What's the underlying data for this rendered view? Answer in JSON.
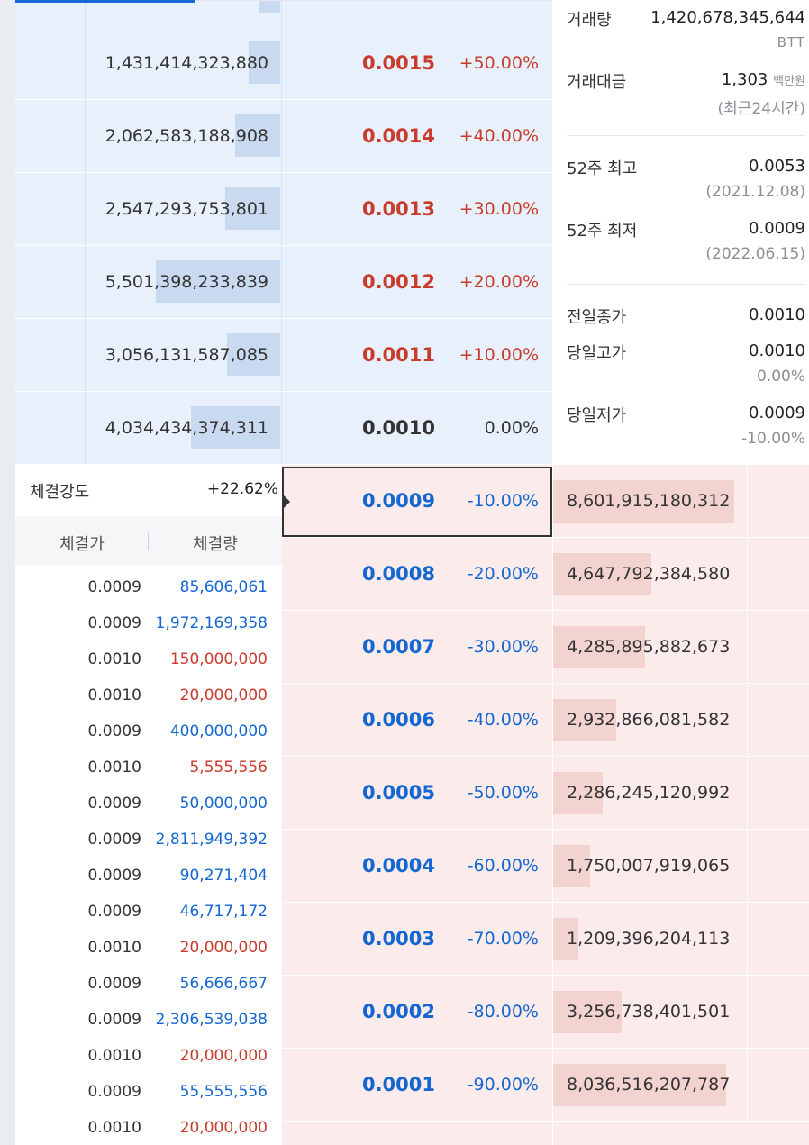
{
  "colors": {
    "up": "#c93b2c",
    "down": "#1466d0",
    "flat": "#333333",
    "ask_bg": "#e8f0fb",
    "bid_bg": "#fbeceb"
  },
  "ask_rows": [
    {
      "volume": "1,431,414,323,880",
      "price": "0.0015",
      "change": "+50.00%",
      "tone": "red",
      "bar_fraction": 0.16
    },
    {
      "volume": "2,062,583,188,908",
      "price": "0.0014",
      "change": "+40.00%",
      "tone": "red",
      "bar_fraction": 0.23
    },
    {
      "volume": "2,547,293,753,801",
      "price": "0.0013",
      "change": "+30.00%",
      "tone": "red",
      "bar_fraction": 0.28
    },
    {
      "volume": "5,501,398,233,839",
      "price": "0.0012",
      "change": "+20.00%",
      "tone": "red",
      "bar_fraction": 0.63
    },
    {
      "volume": "3,056,131,587,085",
      "price": "0.0011",
      "change": "+10.00%",
      "tone": "red",
      "bar_fraction": 0.27
    },
    {
      "volume": "4,034,434,374,311",
      "price": "0.0010",
      "change": "0.00%",
      "tone": "dark",
      "bar_fraction": 0.45
    }
  ],
  "bid_rows": [
    {
      "price": "0.0009",
      "change": "-10.00%",
      "volume": "8,601,915,180,312",
      "bar_fraction": 0.92
    },
    {
      "price": "0.0008",
      "change": "-20.00%",
      "volume": "4,647,792,384,580",
      "bar_fraction": 0.5
    },
    {
      "price": "0.0007",
      "change": "-30.00%",
      "volume": "4,285,895,882,673",
      "bar_fraction": 0.47
    },
    {
      "price": "0.0006",
      "change": "-40.00%",
      "volume": "2,932,866,081,582",
      "bar_fraction": 0.32
    },
    {
      "price": "0.0005",
      "change": "-50.00%",
      "volume": "2,286,245,120,992",
      "bar_fraction": 0.25
    },
    {
      "price": "0.0004",
      "change": "-60.00%",
      "volume": "1,750,007,919,065",
      "bar_fraction": 0.19
    },
    {
      "price": "0.0003",
      "change": "-70.00%",
      "volume": "1,209,396,204,113",
      "bar_fraction": 0.13
    },
    {
      "price": "0.0002",
      "change": "-80.00%",
      "volume": "3,256,738,401,501",
      "bar_fraction": 0.35
    },
    {
      "price": "0.0001",
      "change": "-90.00%",
      "volume": "8,036,516,207,787",
      "bar_fraction": 0.88
    }
  ],
  "info": {
    "volume_label": "거래량",
    "volume_value": "1,420,678,345,644",
    "volume_unit": "BTT",
    "amount_label": "거래대금",
    "amount_value": "1,303",
    "amount_unit": "백만원",
    "amount_period": "(최근24시간)",
    "high52_label": "52주 최고",
    "high52_value": "0.0053",
    "high52_date": "(2021.12.08)",
    "low52_label": "52주 최저",
    "low52_value": "0.0009",
    "low52_date": "(2022.06.15)",
    "prev_close_label": "전일종가",
    "prev_close_value": "0.0010",
    "today_high_label": "당일고가",
    "today_high_value": "0.0010",
    "today_high_pct": "0.00%",
    "today_low_label": "당일저가",
    "today_low_value": "0.0009",
    "today_low_pct": "-10.00%"
  },
  "trades": {
    "strength_label": "체결강도",
    "strength_value": "+22.62%",
    "col_price": "체결가",
    "col_qty": "체결량",
    "rows": [
      {
        "price": "0.0009",
        "qty": "85,606,061",
        "tone": "blue"
      },
      {
        "price": "0.0009",
        "qty": "1,972,169,358",
        "tone": "blue"
      },
      {
        "price": "0.0010",
        "qty": "150,000,000",
        "tone": "red"
      },
      {
        "price": "0.0010",
        "qty": "20,000,000",
        "tone": "red"
      },
      {
        "price": "0.0009",
        "qty": "400,000,000",
        "tone": "blue"
      },
      {
        "price": "0.0010",
        "qty": "5,555,556",
        "tone": "red"
      },
      {
        "price": "0.0009",
        "qty": "50,000,000",
        "tone": "blue"
      },
      {
        "price": "0.0009",
        "qty": "2,811,949,392",
        "tone": "blue"
      },
      {
        "price": "0.0009",
        "qty": "90,271,404",
        "tone": "blue"
      },
      {
        "price": "0.0009",
        "qty": "46,717,172",
        "tone": "blue"
      },
      {
        "price": "0.0010",
        "qty": "20,000,000",
        "tone": "red"
      },
      {
        "price": "0.0009",
        "qty": "56,666,667",
        "tone": "blue"
      },
      {
        "price": "0.0009",
        "qty": "2,306,539,038",
        "tone": "blue"
      },
      {
        "price": "0.0010",
        "qty": "20,000,000",
        "tone": "red"
      },
      {
        "price": "0.0009",
        "qty": "55,555,556",
        "tone": "blue"
      },
      {
        "price": "0.0010",
        "qty": "20,000,000",
        "tone": "red"
      }
    ]
  }
}
